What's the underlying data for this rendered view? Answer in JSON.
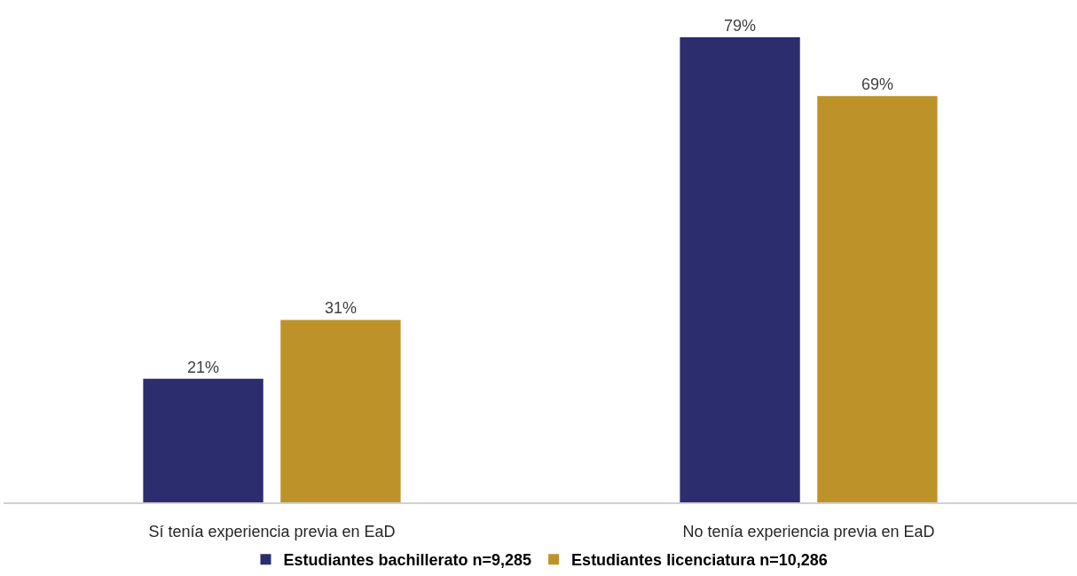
{
  "chart_data": {
    "type": "bar",
    "categories": [
      "Sí tenía experiencia previa en EaD",
      "No tenía experiencia previa en EaD"
    ],
    "series": [
      {
        "name": "Estudiantes bachillerato n=9,285",
        "color": "#2b2d6e",
        "values": [
          21,
          79
        ],
        "value_labels": [
          "21%",
          "79%"
        ]
      },
      {
        "name": "Estudiantes licenciatura n=10,286",
        "color": "#bd9329",
        "values": [
          31,
          69
        ],
        "value_labels": [
          "31%",
          "69%"
        ]
      }
    ],
    "legend": "bottom",
    "tick_labels": "x"
  }
}
